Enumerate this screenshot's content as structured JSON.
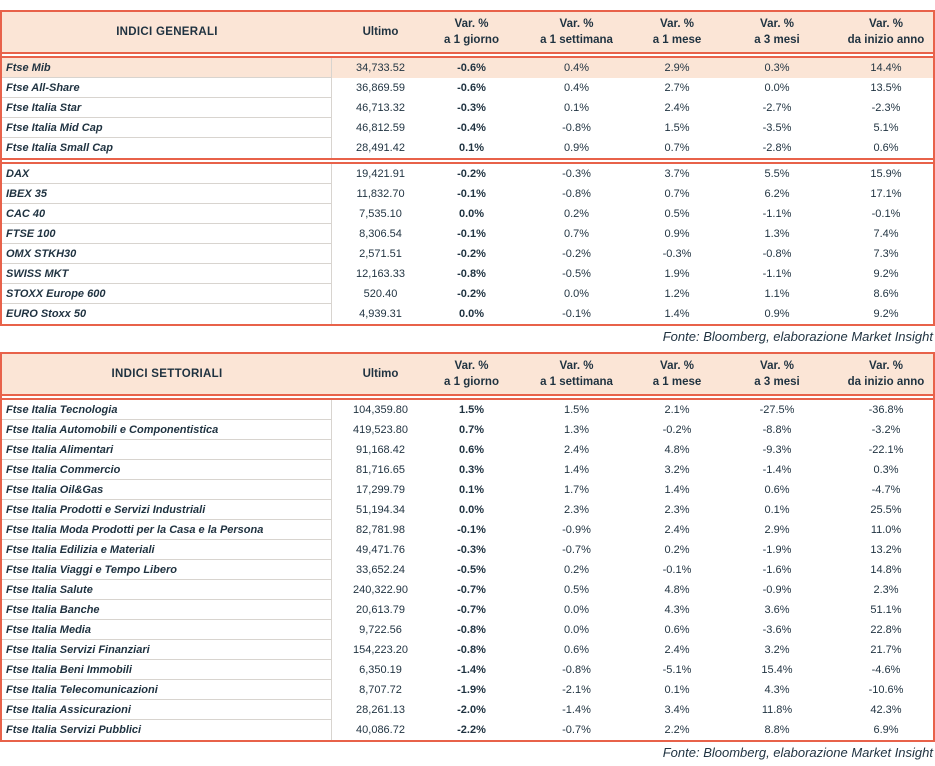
{
  "colors": {
    "accent": "#E8624A",
    "header_band_bg": "#FBE5D6",
    "highlight_row_bg": "#FBE5D6",
    "text": "#1F3240",
    "grid_line": "#D8D4CF",
    "page_bg": "#FFFFFF"
  },
  "columns": {
    "ultimo": "Ultimo",
    "var_label": "Var. %",
    "periods": [
      "a 1 giorno",
      "a 1 settimana",
      "a 1 mese",
      "a 3 mesi",
      "da inizio anno"
    ]
  },
  "tables": [
    {
      "title": "INDICI GENERALI",
      "source": "Fonte: Bloomberg, elaborazione Market Insight",
      "sections": [
        [
          {
            "name": "Ftse Mib",
            "ultimo": "34,733.52",
            "var": [
              "-0.6%",
              "0.4%",
              "2.9%",
              "0.3%",
              "14.4%"
            ],
            "highlight": true
          },
          {
            "name": "Ftse All-Share",
            "ultimo": "36,869.59",
            "var": [
              "-0.6%",
              "0.4%",
              "2.7%",
              "0.0%",
              "13.5%"
            ]
          },
          {
            "name": "Ftse Italia Star",
            "ultimo": "46,713.32",
            "var": [
              "-0.3%",
              "0.1%",
              "2.4%",
              "-2.7%",
              "-2.3%"
            ]
          },
          {
            "name": "Ftse Italia Mid Cap",
            "ultimo": "46,812.59",
            "var": [
              "-0.4%",
              "-0.8%",
              "1.5%",
              "-3.5%",
              "5.1%"
            ]
          },
          {
            "name": "Ftse Italia Small Cap",
            "ultimo": "28,491.42",
            "var": [
              "0.1%",
              "0.9%",
              "0.7%",
              "-2.8%",
              "0.6%"
            ]
          }
        ],
        [
          {
            "name": "DAX",
            "ultimo": "19,421.91",
            "var": [
              "-0.2%",
              "-0.3%",
              "3.7%",
              "5.5%",
              "15.9%"
            ]
          },
          {
            "name": "IBEX 35",
            "ultimo": "11,832.70",
            "var": [
              "-0.1%",
              "-0.8%",
              "0.7%",
              "6.2%",
              "17.1%"
            ]
          },
          {
            "name": "CAC 40",
            "ultimo": "7,535.10",
            "var": [
              "0.0%",
              "0.2%",
              "0.5%",
              "-1.1%",
              "-0.1%"
            ]
          },
          {
            "name": "FTSE 100",
            "ultimo": "8,306.54",
            "var": [
              "-0.1%",
              "0.7%",
              "0.9%",
              "1.3%",
              "7.4%"
            ]
          },
          {
            "name": "OMX STKH30",
            "ultimo": "2,571.51",
            "var": [
              "-0.2%",
              "-0.2%",
              "-0.3%",
              "-0.8%",
              "7.3%"
            ]
          },
          {
            "name": "SWISS MKT",
            "ultimo": "12,163.33",
            "var": [
              "-0.8%",
              "-0.5%",
              "1.9%",
              "-1.1%",
              "9.2%"
            ]
          },
          {
            "name": "STOXX Europe 600",
            "ultimo": "520.40",
            "var": [
              "-0.2%",
              "0.0%",
              "1.2%",
              "1.1%",
              "8.6%"
            ]
          },
          {
            "name": "EURO Stoxx 50",
            "ultimo": "4,939.31",
            "var": [
              "0.0%",
              "-0.1%",
              "1.4%",
              "0.9%",
              "9.2%"
            ]
          }
        ]
      ]
    },
    {
      "title": "INDICI SETTORIALI",
      "source": "Fonte: Bloomberg, elaborazione Market Insight",
      "sections": [
        [
          {
            "name": "Ftse Italia Tecnologia",
            "ultimo": "104,359.80",
            "var": [
              "1.5%",
              "1.5%",
              "2.1%",
              "-27.5%",
              "-36.8%"
            ]
          },
          {
            "name": "Ftse Italia Automobili e Componentistica",
            "ultimo": "419,523.80",
            "var": [
              "0.7%",
              "1.3%",
              "-0.2%",
              "-8.8%",
              "-3.2%"
            ]
          },
          {
            "name": "Ftse Italia Alimentari",
            "ultimo": "91,168.42",
            "var": [
              "0.6%",
              "2.4%",
              "4.8%",
              "-9.3%",
              "-22.1%"
            ]
          },
          {
            "name": "Ftse Italia Commercio",
            "ultimo": "81,716.65",
            "var": [
              "0.3%",
              "1.4%",
              "3.2%",
              "-1.4%",
              "0.3%"
            ]
          },
          {
            "name": "Ftse Italia Oil&Gas",
            "ultimo": "17,299.79",
            "var": [
              "0.1%",
              "1.7%",
              "1.4%",
              "0.6%",
              "-4.7%"
            ]
          },
          {
            "name": "Ftse Italia Prodotti e Servizi Industriali",
            "ultimo": "51,194.34",
            "var": [
              "0.0%",
              "2.3%",
              "2.3%",
              "0.1%",
              "25.5%"
            ]
          },
          {
            "name": "Ftse Italia Moda Prodotti per la Casa e la Persona",
            "ultimo": "82,781.98",
            "var": [
              "-0.1%",
              "-0.9%",
              "2.4%",
              "2.9%",
              "11.0%"
            ]
          },
          {
            "name": "Ftse Italia Edilizia e Materiali",
            "ultimo": "49,471.76",
            "var": [
              "-0.3%",
              "-0.7%",
              "0.2%",
              "-1.9%",
              "13.2%"
            ]
          },
          {
            "name": "Ftse Italia Viaggi e Tempo Libero",
            "ultimo": "33,652.24",
            "var": [
              "-0.5%",
              "0.2%",
              "-0.1%",
              "-1.6%",
              "14.8%"
            ]
          },
          {
            "name": "Ftse Italia Salute",
            "ultimo": "240,322.90",
            "var": [
              "-0.7%",
              "0.5%",
              "4.8%",
              "-0.9%",
              "2.3%"
            ]
          },
          {
            "name": "Ftse Italia Banche",
            "ultimo": "20,613.79",
            "var": [
              "-0.7%",
              "0.0%",
              "4.3%",
              "3.6%",
              "51.1%"
            ]
          },
          {
            "name": "Ftse Italia Media",
            "ultimo": "9,722.56",
            "var": [
              "-0.8%",
              "0.0%",
              "0.6%",
              "-3.6%",
              "22.8%"
            ]
          },
          {
            "name": "Ftse Italia Servizi Finanziari",
            "ultimo": "154,223.20",
            "var": [
              "-0.8%",
              "0.6%",
              "2.4%",
              "3.2%",
              "21.7%"
            ]
          },
          {
            "name": "Ftse Italia Beni Immobili",
            "ultimo": "6,350.19",
            "var": [
              "-1.4%",
              "-0.8%",
              "-5.1%",
              "15.4%",
              "-4.6%"
            ]
          },
          {
            "name": "Ftse Italia Telecomunicazioni",
            "ultimo": "8,707.72",
            "var": [
              "-1.9%",
              "-2.1%",
              "0.1%",
              "4.3%",
              "-10.6%"
            ]
          },
          {
            "name": "Ftse Italia Assicurazioni",
            "ultimo": "28,261.13",
            "var": [
              "-2.0%",
              "-1.4%",
              "3.4%",
              "11.8%",
              "42.3%"
            ]
          },
          {
            "name": "Ftse Italia Servizi Pubblici",
            "ultimo": "40,086.72",
            "var": [
              "-2.2%",
              "-0.7%",
              "2.2%",
              "8.8%",
              "6.9%"
            ]
          }
        ]
      ]
    }
  ]
}
